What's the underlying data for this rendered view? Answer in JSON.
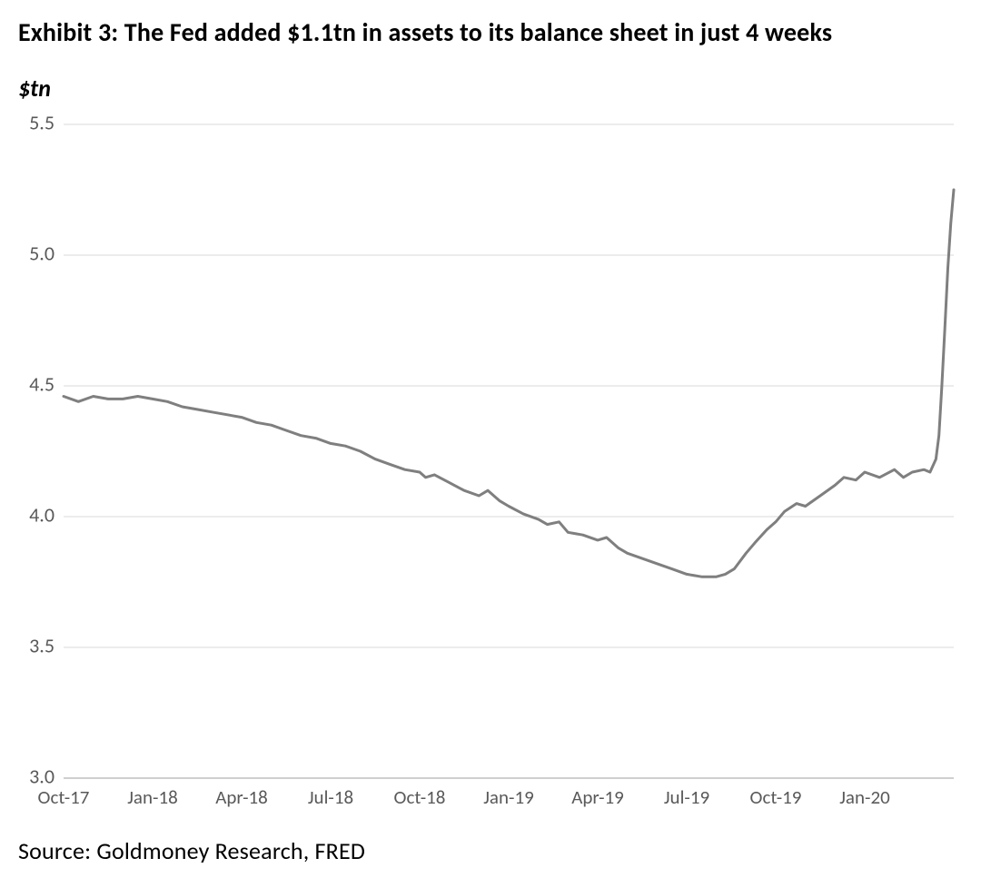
{
  "title": "Exhibit 3: The Fed added $1.1tn in assets to its balance sheet in just 4 weeks",
  "ylabel": "$tn",
  "source": "Source: Goldmoney Research, FRED",
  "chart": {
    "type": "line",
    "background_color": "#ffffff",
    "grid_color": "#d9d9d9",
    "axis_color": "#bfbfbf",
    "text_color": "#595959",
    "line_color": "#7f7f7f",
    "line_width": 3,
    "title_fontsize": 28,
    "label_fontsize": 26,
    "tick_fontsize": 22,
    "y": {
      "min": 3.0,
      "max": 5.5,
      "ticks": [
        3.0,
        3.5,
        4.0,
        4.5,
        5.0,
        5.5
      ],
      "tick_labels": [
        "3.0",
        "3.5",
        "4.0",
        "4.5",
        "5.0",
        "5.5"
      ]
    },
    "x": {
      "min": 0,
      "max": 30,
      "ticks": [
        0,
        3,
        6,
        9,
        12,
        15,
        18,
        21,
        24,
        27
      ],
      "tick_labels": [
        "Oct-17",
        "Jan-18",
        "Apr-18",
        "Jul-18",
        "Oct-18",
        "Jan-19",
        "Apr-19",
        "Jul-19",
        "Oct-19",
        "Jan-20"
      ]
    },
    "series": [
      {
        "name": "fed_balance_sheet",
        "points": [
          [
            0.0,
            4.46
          ],
          [
            0.5,
            4.44
          ],
          [
            1.0,
            4.46
          ],
          [
            1.5,
            4.45
          ],
          [
            2.0,
            4.45
          ],
          [
            2.5,
            4.46
          ],
          [
            3.0,
            4.45
          ],
          [
            3.5,
            4.44
          ],
          [
            4.0,
            4.42
          ],
          [
            4.5,
            4.41
          ],
          [
            5.0,
            4.4
          ],
          [
            5.5,
            4.39
          ],
          [
            6.0,
            4.38
          ],
          [
            6.5,
            4.36
          ],
          [
            7.0,
            4.35
          ],
          [
            7.5,
            4.33
          ],
          [
            8.0,
            4.31
          ],
          [
            8.5,
            4.3
          ],
          [
            9.0,
            4.28
          ],
          [
            9.5,
            4.27
          ],
          [
            10.0,
            4.25
          ],
          [
            10.5,
            4.22
          ],
          [
            11.0,
            4.2
          ],
          [
            11.5,
            4.18
          ],
          [
            12.0,
            4.17
          ],
          [
            12.2,
            4.15
          ],
          [
            12.5,
            4.16
          ],
          [
            13.0,
            4.13
          ],
          [
            13.5,
            4.1
          ],
          [
            14.0,
            4.08
          ],
          [
            14.3,
            4.1
          ],
          [
            14.7,
            4.06
          ],
          [
            15.0,
            4.04
          ],
          [
            15.5,
            4.01
          ],
          [
            16.0,
            3.99
          ],
          [
            16.3,
            3.97
          ],
          [
            16.7,
            3.98
          ],
          [
            17.0,
            3.94
          ],
          [
            17.5,
            3.93
          ],
          [
            18.0,
            3.91
          ],
          [
            18.3,
            3.92
          ],
          [
            18.7,
            3.88
          ],
          [
            19.0,
            3.86
          ],
          [
            19.5,
            3.84
          ],
          [
            20.0,
            3.82
          ],
          [
            20.5,
            3.8
          ],
          [
            21.0,
            3.78
          ],
          [
            21.5,
            3.77
          ],
          [
            22.0,
            3.77
          ],
          [
            22.3,
            3.78
          ],
          [
            22.6,
            3.8
          ],
          [
            23.0,
            3.86
          ],
          [
            23.3,
            3.9
          ],
          [
            23.7,
            3.95
          ],
          [
            24.0,
            3.98
          ],
          [
            24.3,
            4.02
          ],
          [
            24.7,
            4.05
          ],
          [
            25.0,
            4.04
          ],
          [
            25.5,
            4.08
          ],
          [
            26.0,
            4.12
          ],
          [
            26.3,
            4.15
          ],
          [
            26.7,
            4.14
          ],
          [
            27.0,
            4.17
          ],
          [
            27.5,
            4.15
          ],
          [
            28.0,
            4.18
          ],
          [
            28.3,
            4.15
          ],
          [
            28.6,
            4.17
          ],
          [
            29.0,
            4.18
          ],
          [
            29.2,
            4.17
          ],
          [
            29.4,
            4.22
          ],
          [
            29.5,
            4.31
          ],
          [
            29.6,
            4.5
          ],
          [
            29.7,
            4.72
          ],
          [
            29.8,
            4.95
          ],
          [
            29.9,
            5.12
          ],
          [
            30.0,
            5.25
          ]
        ]
      }
    ]
  }
}
